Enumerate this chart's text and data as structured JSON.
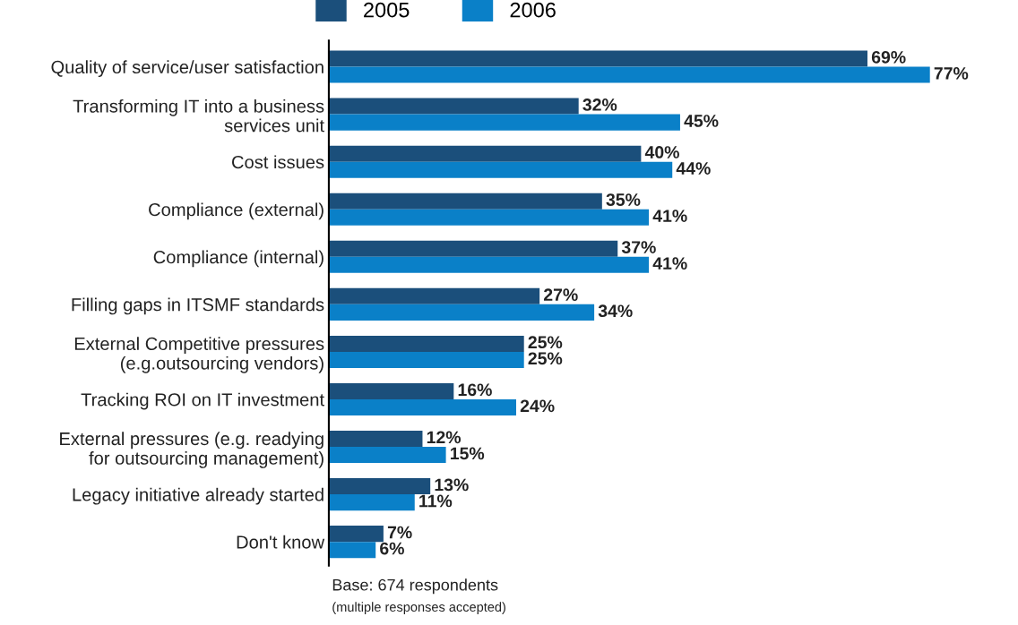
{
  "chart_data": {
    "type": "bar",
    "orientation": "horizontal",
    "categories": [
      "Quality of service/user satisfaction",
      "Transforming IT into a business\nservices unit",
      "Cost issues",
      "Compliance (external)",
      "Compliance (internal)",
      "Filling gaps in ITSMF standards",
      "External Competitive pressures\n(e.g.outsourcing vendors)",
      "Tracking ROI on IT investment",
      "External pressures (e.g. readying\nfor outsourcing management)",
      "Legacy initiative already started",
      "Don't know"
    ],
    "series": [
      {
        "name": "2005",
        "color": "#1b4f7b",
        "values": [
          69,
          32,
          40,
          35,
          37,
          27,
          25,
          16,
          12,
          13,
          7
        ],
        "value_labels": [
          "69%",
          "32%",
          "40%",
          "35%",
          "37%",
          "27%",
          "25%",
          "16%",
          "12%",
          "13%",
          "7%"
        ]
      },
      {
        "name": "2006",
        "color": "#0a80c8",
        "values": [
          77,
          45,
          44,
          41,
          41,
          34,
          25,
          24,
          15,
          11,
          6
        ],
        "value_labels": [
          "77%",
          "45%",
          "44%",
          "41%",
          "41%",
          "34%",
          "25%",
          "24%",
          "15%",
          "11%",
          "6%"
        ]
      }
    ],
    "tick_labels": "y",
    "grid": false,
    "legend": "top",
    "annotations": [
      "Base: 674 respondents",
      "(multiple responses accepted)"
    ]
  }
}
